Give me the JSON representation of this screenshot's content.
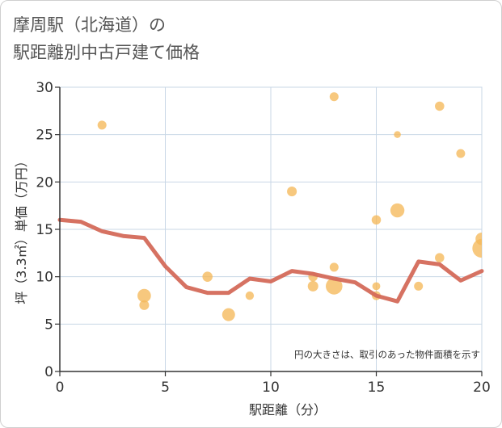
{
  "title": {
    "line1": "摩周駅（北海道）の",
    "line2": "駅距離別中古戸建て価格"
  },
  "chart_data": {
    "type": "scatter",
    "xlabel": "駅距離（分）",
    "ylabel": "坪（3.3㎡）単価（万円）",
    "xlim": [
      0,
      20
    ],
    "ylim": [
      0,
      30
    ],
    "xticks": [
      0,
      5,
      10,
      15,
      20
    ],
    "yticks": [
      0,
      5,
      10,
      15,
      20,
      25,
      30
    ],
    "grid": true,
    "note": "円の大きさは、取引のあった物件面積を示す",
    "colors": {
      "bubble": "#f5b95a",
      "line": "#d46a5a",
      "grid": "#c8d7e6",
      "axis": "#333333"
    },
    "bubbles": [
      {
        "x": 2,
        "y": 26,
        "size": 1.0
      },
      {
        "x": 4,
        "y": 8,
        "size": 2.3
      },
      {
        "x": 4,
        "y": 7,
        "size": 1.2
      },
      {
        "x": 7,
        "y": 10,
        "size": 1.3
      },
      {
        "x": 8,
        "y": 6,
        "size": 2.1
      },
      {
        "x": 9,
        "y": 8,
        "size": 0.9
      },
      {
        "x": 11,
        "y": 19,
        "size": 1.2
      },
      {
        "x": 12,
        "y": 9,
        "size": 1.4
      },
      {
        "x": 12,
        "y": 10,
        "size": 1.1
      },
      {
        "x": 13,
        "y": 29,
        "size": 1.0
      },
      {
        "x": 13,
        "y": 11,
        "size": 1.0
      },
      {
        "x": 13,
        "y": 9,
        "size": 3.5
      },
      {
        "x": 15,
        "y": 16,
        "size": 1.1
      },
      {
        "x": 15,
        "y": 9,
        "size": 0.8
      },
      {
        "x": 15,
        "y": 8,
        "size": 1.0
      },
      {
        "x": 16,
        "y": 25,
        "size": 0.6
      },
      {
        "x": 16,
        "y": 17,
        "size": 2.5
      },
      {
        "x": 17,
        "y": 9,
        "size": 1.0
      },
      {
        "x": 18,
        "y": 28,
        "size": 1.1
      },
      {
        "x": 18,
        "y": 12,
        "size": 1.1
      },
      {
        "x": 19,
        "y": 23,
        "size": 1.0
      },
      {
        "x": 20,
        "y": 13,
        "size": 4.5
      },
      {
        "x": 20,
        "y": 14,
        "size": 2.0
      }
    ],
    "line": {
      "x": [
        0,
        1,
        2,
        3,
        4,
        5,
        6,
        7,
        8,
        9,
        10,
        11,
        12,
        13,
        14,
        15,
        16,
        17,
        18,
        19,
        20
      ],
      "y": [
        16.0,
        15.8,
        14.8,
        14.3,
        14.1,
        11.1,
        8.9,
        8.3,
        8.3,
        9.8,
        9.5,
        10.6,
        10.3,
        9.8,
        9.4,
        8.0,
        7.4,
        11.6,
        11.3,
        9.6,
        10.6
      ]
    }
  }
}
